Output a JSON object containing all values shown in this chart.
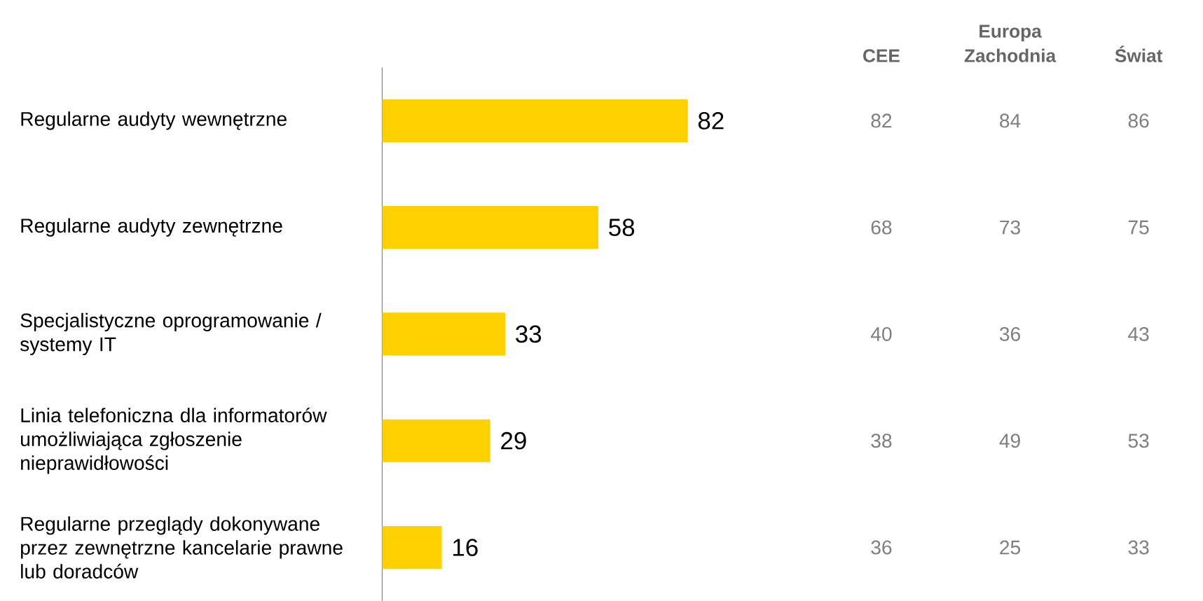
{
  "chart_data": [
    {
      "type": "bar",
      "orientation": "horizontal",
      "categories": [
        "Regularne audyty wewnętrzne",
        "Regularne audyty zewnętrzne",
        "Specjalistyczne oprogramowanie / systemy IT",
        "Linia telefoniczna dla informatorów umożliwiająca zgłoszenie nieprawidłowości",
        "Regularne przeglądy dokonywane przez zewnętrzne kancelarie prawne lub doradców"
      ],
      "values": [
        82,
        58,
        33,
        29,
        16
      ],
      "color": "#ffd100",
      "data_labels": true,
      "tick_labels": "y"
    },
    {
      "type": "heatmap",
      "categories": [
        "CEE",
        "Europa Zachodnia",
        "Świat"
      ],
      "y_categories": [
        null,
        null,
        null,
        null,
        null
      ],
      "cells": [
        [
          82,
          84,
          86
        ],
        [
          68,
          73,
          75
        ],
        [
          40,
          36,
          43
        ],
        [
          38,
          49,
          53
        ],
        [
          36,
          25,
          33
        ]
      ],
      "data_labels": true
    }
  ]
}
